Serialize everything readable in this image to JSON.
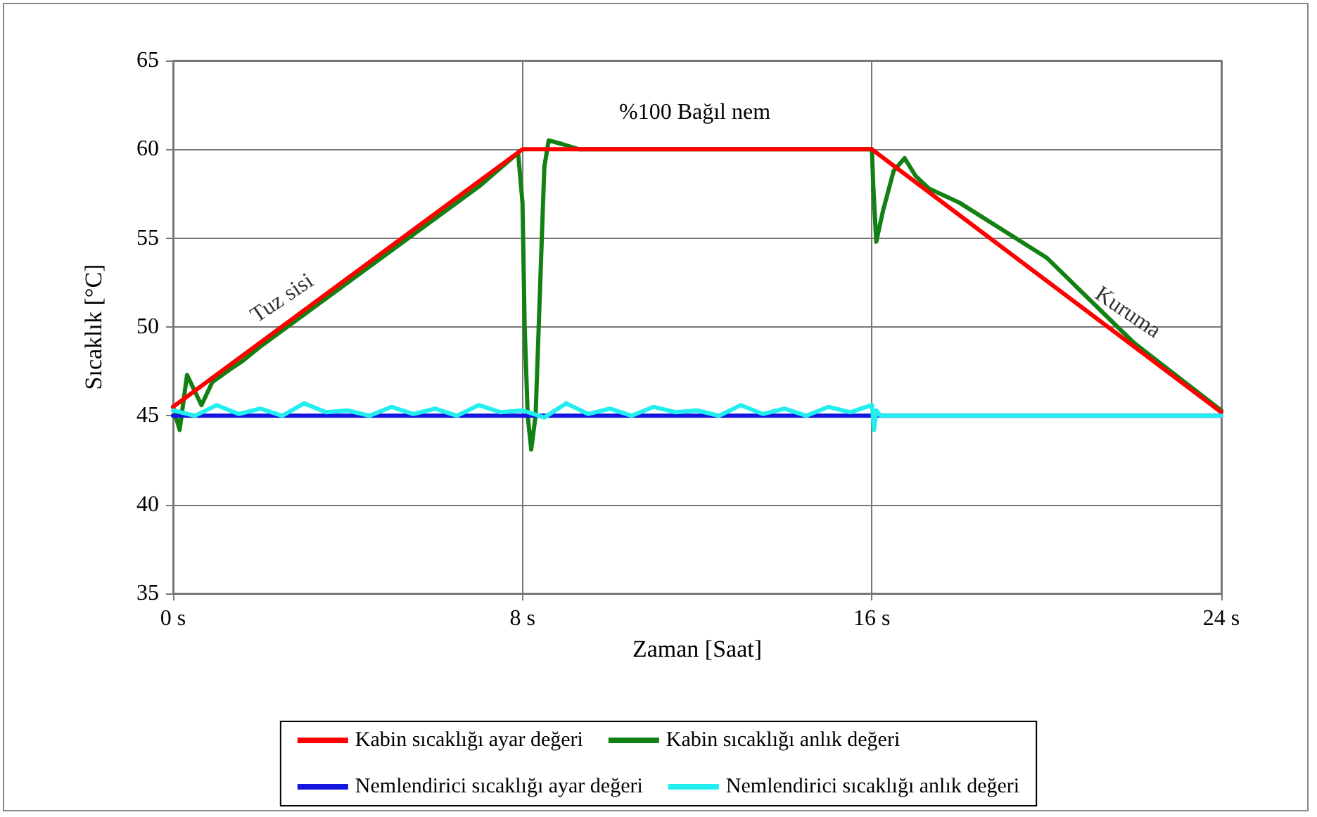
{
  "chart_data": {
    "type": "line",
    "xlabel": "Zaman [Saat]",
    "ylabel": "Sıcaklık [°C]",
    "xlim": [
      0,
      24
    ],
    "xticks": [
      {
        "value": 0,
        "label": "0 s"
      },
      {
        "value": 8,
        "label": "8 s"
      },
      {
        "value": 16,
        "label": "16 s"
      },
      {
        "value": 24,
        "label": "24 s"
      }
    ],
    "ylim": [
      35,
      65
    ],
    "yticks": [
      35,
      40,
      45,
      50,
      55,
      60,
      65
    ],
    "grid": true,
    "legend": "bottom",
    "marker": "none",
    "line_style": "solid",
    "annotations": [
      {
        "text": "Tuz sisi",
        "x": 3,
        "y": 50.9
      },
      "%100 Bağıl nem",
      {
        "text": "Kuruma",
        "x": 21.3,
        "y": 50.2
      }
    ],
    "series": [
      {
        "name": "Kabin sıcaklığı ayar değeri",
        "color": "#ff0000",
        "x": [
          0,
          8,
          16,
          24
        ],
        "values": [
          45.5,
          60,
          60,
          45.2
        ]
      },
      {
        "name": "Kabin sıcaklığı anlık değeri",
        "color": "#138013",
        "x": [
          0,
          0.15,
          0.32,
          0.65,
          0.9,
          1.3,
          1.6,
          2,
          4,
          6,
          7,
          7.9,
          8,
          8.05,
          8.12,
          8.2,
          8.3,
          8.4,
          8.5,
          8.6,
          8.9,
          9.3,
          16,
          16.03,
          16.1,
          16.25,
          16.5,
          16.75,
          17,
          17.3,
          18,
          20,
          22,
          24
        ],
        "values": [
          45.5,
          44.2,
          47.3,
          45.6,
          46.9,
          47.6,
          48.1,
          48.9,
          52.5,
          56.1,
          57.9,
          59.8,
          57,
          50,
          45,
          43.1,
          45,
          52,
          59,
          60.5,
          60.3,
          60,
          60,
          58,
          54.8,
          56.5,
          58.8,
          59.5,
          58.5,
          57.8,
          57.0,
          53.9,
          49.1,
          45.3
        ]
      },
      {
        "name": "Nemlendirici sıcaklığı ayar değeri",
        "color": "#1515e0",
        "x": [
          0,
          24
        ],
        "values": [
          45,
          45
        ]
      },
      {
        "name": "Nemlendirici sıcaklığı anlık değeri",
        "color": "#22eef0",
        "x": [
          0,
          0.5,
          1,
          1.5,
          2,
          2.5,
          3,
          3.5,
          4,
          4.5,
          5,
          5.5,
          6,
          6.5,
          7,
          7.5,
          8,
          8.5,
          9,
          9.5,
          10,
          10.5,
          11,
          11.5,
          12,
          12.5,
          13,
          13.5,
          14,
          14.5,
          15,
          15.5,
          16,
          16.05,
          16.1,
          16.2,
          24
        ],
        "values": [
          45.3,
          45.0,
          45.6,
          45.1,
          45.4,
          45.0,
          45.7,
          45.2,
          45.3,
          45.0,
          45.5,
          45.1,
          45.4,
          45.0,
          45.6,
          45.2,
          45.3,
          44.9,
          45.7,
          45.1,
          45.4,
          45.0,
          45.5,
          45.2,
          45.3,
          45.0,
          45.6,
          45.1,
          45.4,
          45.0,
          45.5,
          45.2,
          45.6,
          44.2,
          45.3,
          45,
          45
        ]
      }
    ]
  }
}
